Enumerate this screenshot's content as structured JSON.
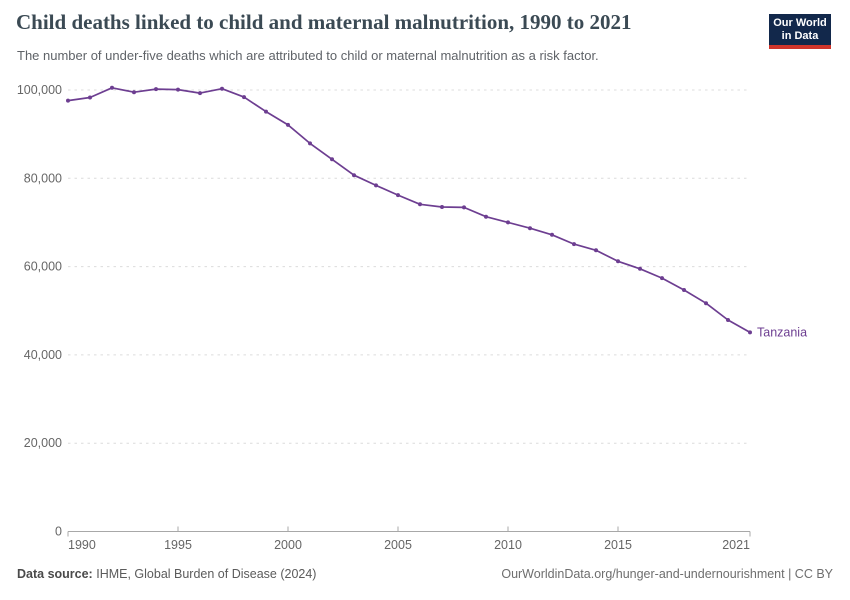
{
  "header": {
    "title": "Child deaths linked to child and maternal malnutrition, 1990 to 2021",
    "subtitle": "The number of under-five deaths which are attributed to child or maternal malnutrition as a risk factor.",
    "logo": {
      "line1": "Our World",
      "line2": "in Data"
    }
  },
  "footer": {
    "source_label": "Data source:",
    "source_value": "IHME, Global Burden of Disease (2024)",
    "attribution": "OurWorldinData.org/hunger-and-undernourishment | CC BY"
  },
  "colors": {
    "series": "#6d3e91",
    "grid": "#dcdcdc",
    "axis": "#a8a8a8",
    "tick_label": "#666666",
    "logo_bg": "#12284b",
    "logo_accent": "#d0352b"
  },
  "chart_data": {
    "type": "line",
    "title": "Child deaths linked to child and maternal malnutrition, 1990 to 2021",
    "subtitle": "The number of under-five deaths which are attributed to child or maternal malnutrition as a risk factor.",
    "xlabel": "",
    "ylabel": "",
    "xlim": [
      1990,
      2021
    ],
    "ylim": [
      0,
      100000
    ],
    "x_ticks": [
      1990,
      1995,
      2000,
      2005,
      2010,
      2015,
      2021
    ],
    "y_ticks": [
      0,
      20000,
      40000,
      60000,
      80000,
      100000
    ],
    "grid": "horizontal-dashed",
    "legend": "entity-label-at-line-end",
    "series": [
      {
        "name": "Tanzania",
        "color": "#6d3e91",
        "x": [
          1990,
          1991,
          1992,
          1993,
          1994,
          1995,
          1996,
          1997,
          1998,
          1999,
          2000,
          2001,
          2002,
          2003,
          2004,
          2005,
          2006,
          2007,
          2008,
          2009,
          2010,
          2011,
          2012,
          2013,
          2014,
          2015,
          2016,
          2017,
          2018,
          2019,
          2020,
          2021
        ],
        "values": [
          97600,
          98300,
          100500,
          99500,
          100200,
          100100,
          99300,
          100300,
          98400,
          95100,
          92100,
          87900,
          84300,
          80700,
          78400,
          76200,
          74100,
          73500,
          73400,
          71300,
          70000,
          68700,
          67200,
          65100,
          63700,
          61200,
          59500,
          57400,
          54700,
          51700,
          47900,
          45100
        ]
      }
    ]
  }
}
